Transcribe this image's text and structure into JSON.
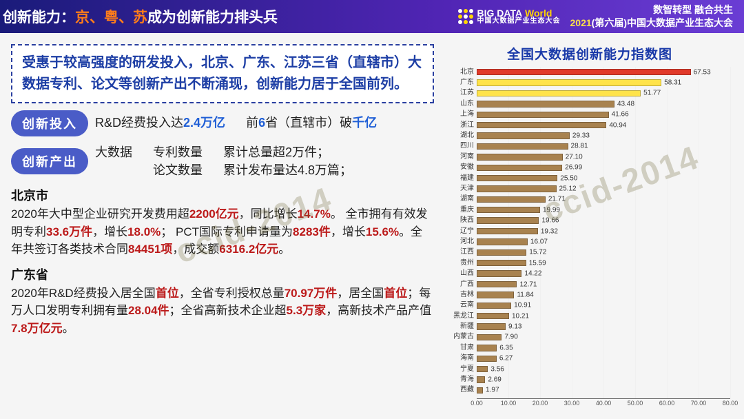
{
  "header": {
    "title_prefix": "创新能力：",
    "title_highlight": "京、粤、苏",
    "title_suffix": "成为创新能力排头兵",
    "logo_top_a": "BIG DATA",
    "logo_top_b": "World",
    "logo_sub": "中国大数据产业生态大会",
    "conf_line1a": "数智转型  融合共生",
    "conf_year": "2021",
    "conf_line2": "(第六届)中国大数据产业生态大会"
  },
  "summary": "受惠于较高强度的研发投入，北京、广东、江苏三省（直辖市）大数据专利、论文等创新产出不断涌现，创新能力居于全国前列。",
  "badges": {
    "invest": {
      "label": "创新投入",
      "t1a": "R&D经费投入达",
      "t1b": "2.4万亿",
      "t2a": "前",
      "t2b": "6",
      "t2c": "省（直辖市）破",
      "t2d": "千亿"
    },
    "output": {
      "label": "创新产出",
      "pre": "大数据",
      "c1a": "专利数量",
      "c1b": "论文数量",
      "c2a": "累计总量超2万件；",
      "c2b": "累计发布量达4.8万篇；"
    }
  },
  "beijing": {
    "name": "北京市",
    "l1a": "2020年大中型企业研究开发费用超",
    "l1b": "2200亿元",
    "l1c": "，同比增长",
    "l1d": "14.7%",
    "l1e": "。",
    "l2a": "全市拥有有效发明专利",
    "l2b": "33.6万件",
    "l2c": "，增长",
    "l2d": "18.0%",
    "l2e": "； PCT国际专利申请量为",
    "l2f": "8283件",
    "l2g": "，增长",
    "l2h": "15.6%",
    "l2i": "。全年共签订各类技术合同",
    "l2j": "84451项",
    "l2k": "，成交额",
    "l2l": "6316.2亿元",
    "l2m": "。"
  },
  "guangdong": {
    "name": "广东省",
    "l1a": "2020年R&D经费投入居全国",
    "l1b": "首位",
    "l1c": "，全省专利授权总量",
    "l1d": "70.97万件",
    "l1e": "，居全国",
    "l1f": "首位",
    "l1g": "；每万人口发明专利拥有量",
    "l1h": "28.04件",
    "l1i": "；全省高新技术企业超",
    "l1j": "5.3万家",
    "l1k": "，高新技术产品产值",
    "l1l": "7.8万亿元",
    "l1m": "。"
  },
  "chart": {
    "title": "全国大数据创新能力指数图",
    "xmax": 80,
    "xtick_step": 10,
    "bar_colors": {
      "top": "#e13a2a",
      "second": "#ffe34a",
      "rest": "#a8824f"
    },
    "data": [
      {
        "name": "北京",
        "v": 67.53,
        "color": "top"
      },
      {
        "name": "广东",
        "v": 58.31,
        "color": "second"
      },
      {
        "name": "江苏",
        "v": 51.77,
        "color": "second"
      },
      {
        "name": "山东",
        "v": 43.48,
        "color": "rest"
      },
      {
        "name": "上海",
        "v": 41.66,
        "color": "rest"
      },
      {
        "name": "浙江",
        "v": 40.94,
        "color": "rest"
      },
      {
        "name": "湖北",
        "v": 29.33,
        "color": "rest"
      },
      {
        "name": "四川",
        "v": 28.81,
        "color": "rest"
      },
      {
        "name": "河南",
        "v": 27.1,
        "color": "rest"
      },
      {
        "name": "安徽",
        "v": 26.99,
        "color": "rest"
      },
      {
        "name": "福建",
        "v": 25.5,
        "color": "rest"
      },
      {
        "name": "天津",
        "v": 25.12,
        "color": "rest"
      },
      {
        "name": "湖南",
        "v": 21.71,
        "color": "rest"
      },
      {
        "name": "重庆",
        "v": 19.99,
        "color": "rest"
      },
      {
        "name": "陕西",
        "v": 19.66,
        "color": "rest"
      },
      {
        "name": "辽宁",
        "v": 19.32,
        "color": "rest"
      },
      {
        "name": "河北",
        "v": 16.07,
        "color": "rest"
      },
      {
        "name": "江西",
        "v": 15.72,
        "color": "rest"
      },
      {
        "name": "贵州",
        "v": 15.59,
        "color": "rest"
      },
      {
        "name": "山西",
        "v": 14.22,
        "color": "rest"
      },
      {
        "name": "广西",
        "v": 12.71,
        "color": "rest"
      },
      {
        "name": "吉林",
        "v": 11.84,
        "color": "rest"
      },
      {
        "name": "云南",
        "v": 10.91,
        "color": "rest"
      },
      {
        "name": "黑龙江",
        "v": 10.21,
        "color": "rest"
      },
      {
        "name": "新疆",
        "v": 9.13,
        "color": "rest"
      },
      {
        "name": "内蒙古",
        "v": 7.9,
        "color": "rest"
      },
      {
        "name": "甘肃",
        "v": 6.35,
        "color": "rest"
      },
      {
        "name": "海南",
        "v": 6.27,
        "color": "rest"
      },
      {
        "name": "宁夏",
        "v": 3.56,
        "color": "rest"
      },
      {
        "name": "青海",
        "v": 2.69,
        "color": "rest"
      },
      {
        "name": "西藏",
        "v": 1.97,
        "color": "rest"
      }
    ]
  },
  "watermark": "ccid-2014"
}
